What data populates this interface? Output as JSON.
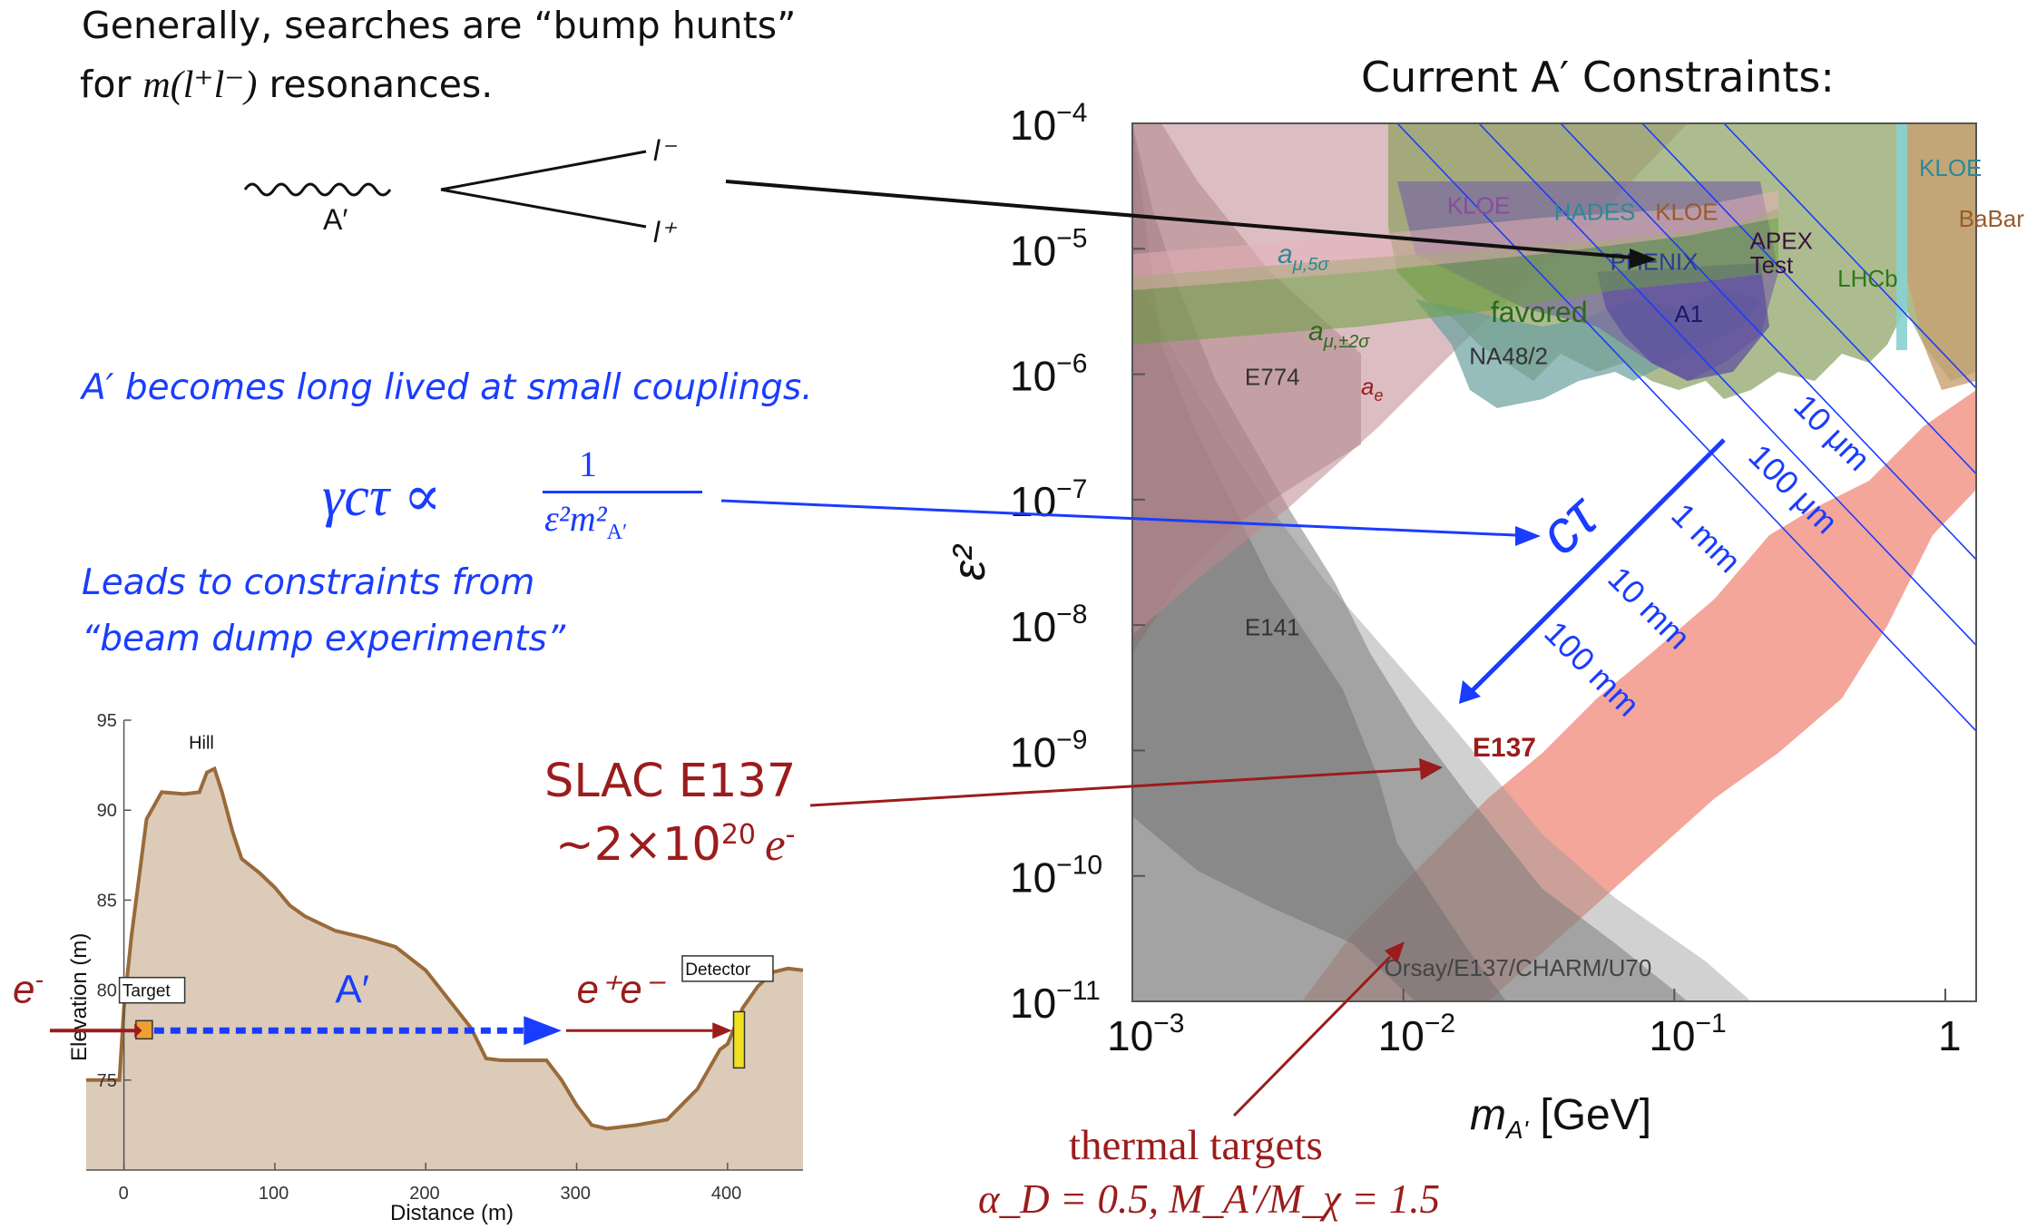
{
  "slide": {
    "intro_line1": "Generally, searches are “bump hunts”",
    "intro_line2_prefix": "for ",
    "intro_line2_math": "m(l⁺l⁻)",
    "intro_line2_suffix": " resonances.",
    "diagram": {
      "lminus": "l⁻",
      "lplus": "l⁺",
      "aprime": "A′"
    },
    "long_lived": "A′ becomes long lived at small couplings.",
    "formula": {
      "lhs": "γcτ ∝",
      "num": "1",
      "den": "ε²m²",
      "den_sub": "A′"
    },
    "leads_line1": "Leads to constraints from",
    "leads_line2": "“beam dump experiments”",
    "slac_line1": "SLAC E137",
    "slac_line2_prefix": "~2×10",
    "slac_line2_exp": "20",
    "slac_line2_e": "e",
    "slac_line2_esup": "-",
    "thermal_label": "thermal targets",
    "thermal_params": "α_D = 0.5, M_A′/M_χ = 1.5"
  },
  "chart_data": [
    {
      "type": "area",
      "title": "Current A′ Constraints:",
      "xlabel": "m_A' [GeV]",
      "xlabel_main": "m",
      "xlabel_sub": "A'",
      "xlabel_unit": " [GeV]",
      "ylabel": "ε²",
      "xscale": "log",
      "yscale": "log",
      "xlim": [
        0.001,
        1.3
      ],
      "ylim": [
        1e-11,
        0.0001
      ],
      "x_tick_labels": [
        {
          "base": "10",
          "exp": "−3",
          "v": 0.001
        },
        {
          "base": "10",
          "exp": "−2",
          "v": 0.01
        },
        {
          "base": "10",
          "exp": "−1",
          "v": 0.1
        },
        {
          "base": "1",
          "exp": "",
          "v": 1
        }
      ],
      "y_tick_labels": [
        {
          "base": "10",
          "exp": "−4",
          "v": 0.0001
        },
        {
          "base": "10",
          "exp": "−5",
          "v": 1e-05
        },
        {
          "base": "10",
          "exp": "−6",
          "v": 1e-06
        },
        {
          "base": "10",
          "exp": "−7",
          "v": 1e-07
        },
        {
          "base": "10",
          "exp": "−8",
          "v": 1e-08
        },
        {
          "base": "10",
          "exp": "−9",
          "v": 1e-09
        },
        {
          "base": "10",
          "exp": "−10",
          "v": 1e-10
        },
        {
          "base": "10",
          "exp": "−11",
          "v": 1e-11
        }
      ],
      "region_labels": [
        {
          "text": "KLOE",
          "x": 0.0145,
          "y": 1.9e-05,
          "color": "#8b4a9c"
        },
        {
          "text": "HADES",
          "x": 0.036,
          "y": 1.7e-05,
          "color": "#2a8a99"
        },
        {
          "text": "KLOE",
          "x": 0.085,
          "y": 1.7e-05,
          "color": "#9a5a2a"
        },
        {
          "text": "KLOE",
          "x": 0.8,
          "y": 3.8e-05,
          "color": "#2a8a99"
        },
        {
          "text": "BaBar",
          "x": 1.12,
          "y": 1.5e-05,
          "color": "#9a5a2a"
        },
        {
          "text": "APEX",
          "x": 0.19,
          "y": 1e-05,
          "color": "#3a1040"
        },
        {
          "text": "Test",
          "x": 0.19,
          "y": 6.4e-06,
          "color": "#3a1040"
        },
        {
          "text": "PHENIX",
          "x": 0.058,
          "y": 6.8e-06,
          "color": "#2a3a9c"
        },
        {
          "text": "LHCb",
          "x": 0.4,
          "y": 5e-06,
          "color": "#2a7a1a"
        },
        {
          "text": "A1",
          "x": 0.1,
          "y": 2.6e-06,
          "color": "#1a1a6a"
        },
        {
          "text": "NA48/2",
          "x": 0.0175,
          "y": 1.2e-06,
          "color": "#333333"
        },
        {
          "text": "favored",
          "x": 0.021,
          "y": 2.6e-06,
          "color": "#2a6a1a"
        },
        {
          "text": "E774",
          "x": 0.0026,
          "y": 8.2e-07,
          "color": "#333333"
        },
        {
          "text": "E141",
          "x": 0.0026,
          "y": 8.3e-09,
          "color": "#333333"
        },
        {
          "text": "E137",
          "x": 0.018,
          "y": 9e-10,
          "color": "#9b1c1c"
        },
        {
          "text": "Orsay/E137/CHARM/U70",
          "x": 0.0085,
          "y": 1.6e-11,
          "color": "#444444"
        }
      ],
      "amu_label": {
        "a": "a",
        "sub": "μ,5σ"
      },
      "amu2_label": {
        "a": "a",
        "sub": "μ,±2σ"
      },
      "ae_label": {
        "a": "a",
        "sub": "e"
      },
      "ctau_label": "cτ",
      "decay_length_labels": [
        "10 μm",
        "100 μm",
        "1 mm",
        "10 mm",
        "100 mm"
      ],
      "colors": {
        "beamdump": "#8c8c8c",
        "ae": "#b87080",
        "favored": "#6aa040",
        "thermal": "#f08878",
        "ctau": "#1a3cff",
        "kloe": "#7a9a50"
      }
    },
    {
      "type": "area",
      "title": "",
      "xlabel": "Distance (m)",
      "ylabel": "Elevation (m)",
      "xlim": [
        -25,
        450
      ],
      "ylim": [
        70,
        95
      ],
      "x_ticks": [
        0,
        100,
        200,
        300,
        400
      ],
      "y_ticks": [
        75,
        80,
        85,
        90,
        95
      ],
      "x": [
        -25,
        -3,
        0,
        5,
        15,
        25,
        40,
        50,
        55,
        60,
        65,
        72,
        78,
        90,
        100,
        110,
        120,
        140,
        160,
        180,
        200,
        230,
        240,
        250,
        260,
        270,
        280,
        290,
        300,
        310,
        320,
        340,
        360,
        380,
        395,
        400,
        410,
        420,
        430,
        440,
        450
      ],
      "y": [
        75,
        75,
        79,
        83,
        89.5,
        91,
        90.9,
        91,
        92.1,
        92.3,
        91,
        88.8,
        87.3,
        86.5,
        85.7,
        84.7,
        84.1,
        83.3,
        82.9,
        82.4,
        81.1,
        77.9,
        76.2,
        76.1,
        76.1,
        76.1,
        76.1,
        75,
        73.6,
        72.5,
        72.3,
        72.5,
        72.8,
        74.5,
        76.7,
        77,
        79,
        80.2,
        81,
        81.2,
        81.1
      ],
      "labels": {
        "hill": "Hill",
        "target": "Target",
        "detector": "Detector",
        "aprime": "A′",
        "eplus_eminus": "e⁺e⁻",
        "eminus": "e",
        "eminus_sup": "-"
      },
      "colors": {
        "terrain_fill": "#dccbb8",
        "terrain_line": "#9a6a3a",
        "beam": "#1a3cff",
        "electron": "#9b1c1c"
      }
    }
  ]
}
